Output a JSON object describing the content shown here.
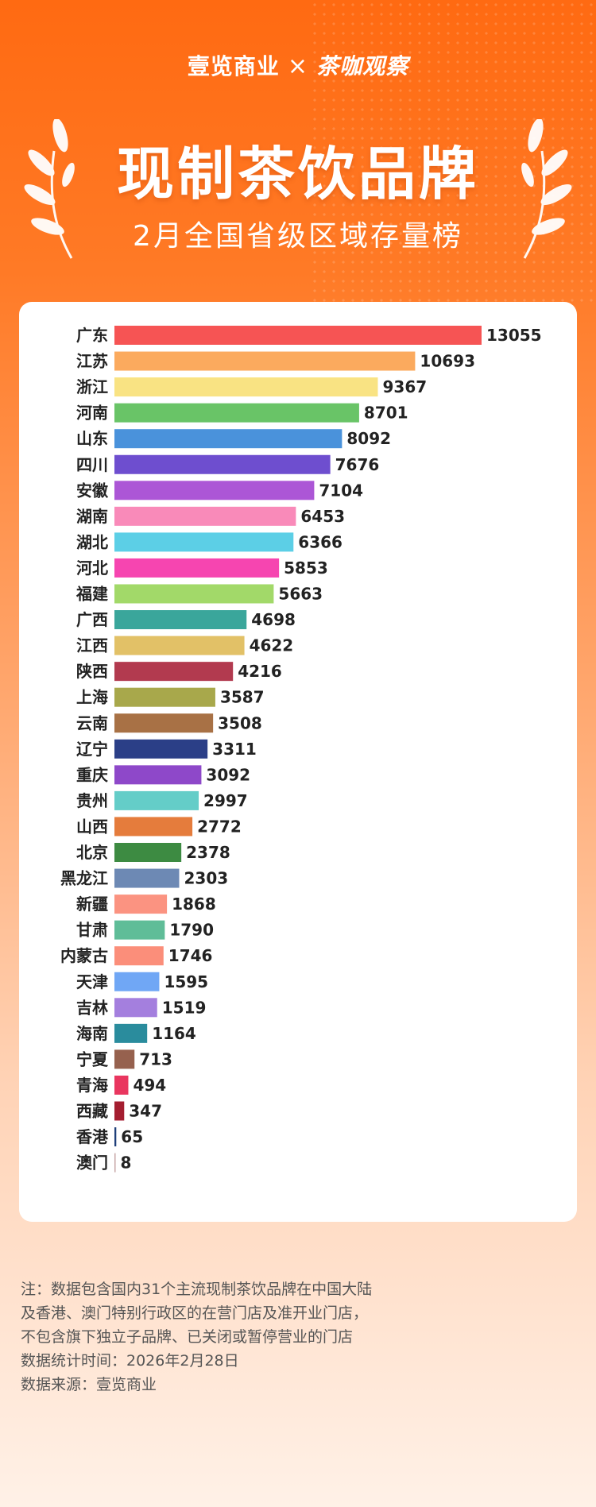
{
  "header": {
    "brand_left": "壹览商业",
    "brand_sep": "×",
    "brand_right": "茶咖观察",
    "title": "现制茶饮品牌",
    "subtitle": "2月全国省级区域存量榜"
  },
  "chart_data": {
    "type": "bar",
    "orientation": "horizontal",
    "title": "2月全国省级区域存量榜",
    "xlim": [
      0,
      13055
    ],
    "categories": [
      "广东",
      "江苏",
      "浙江",
      "河南",
      "山东",
      "四川",
      "安徽",
      "湖南",
      "湖北",
      "河北",
      "福建",
      "广西",
      "江西",
      "陕西",
      "上海",
      "云南",
      "辽宁",
      "重庆",
      "贵州",
      "山西",
      "北京",
      "黑龙江",
      "新疆",
      "甘肃",
      "内蒙古",
      "天津",
      "吉林",
      "海南",
      "宁夏",
      "青海",
      "西藏",
      "香港",
      "澳门"
    ],
    "values": [
      13055,
      10693,
      9367,
      8701,
      8092,
      7676,
      7104,
      6453,
      6366,
      5853,
      5663,
      4698,
      4622,
      4216,
      3587,
      3508,
      3311,
      3092,
      2997,
      2772,
      2378,
      2303,
      1868,
      1790,
      1746,
      1595,
      1519,
      1164,
      713,
      494,
      347,
      65,
      8
    ],
    "colors": [
      "#f65454",
      "#fbaa5e",
      "#f9e383",
      "#69c467",
      "#4a92db",
      "#6e4ecf",
      "#ac56d6",
      "#f98ab9",
      "#5ccfe6",
      "#f645b0",
      "#a2d969",
      "#3aa69b",
      "#e2c167",
      "#b23a4f",
      "#a8a84b",
      "#a87145",
      "#2b3f87",
      "#8e48c9",
      "#64cdc8",
      "#e57c3c",
      "#3d8b42",
      "#6d89b4",
      "#fb9381",
      "#5fbd98",
      "#fb8e7a",
      "#70a7f5",
      "#a47fde",
      "#2a8c9d",
      "#96614e",
      "#e9365f",
      "#a41e30",
      "#1f3f7a",
      "#c7a7a7"
    ]
  },
  "notes": [
    "注：数据包含国内31个主流现制茶饮品牌在中国大陆",
    "及香港、澳门特别行政区的在营门店及准开业门店，",
    "不包含旗下独立子品牌、已关闭或暂停营业的门店",
    "数据统计时间：2026年2月28日",
    "数据来源：壹览商业"
  ]
}
